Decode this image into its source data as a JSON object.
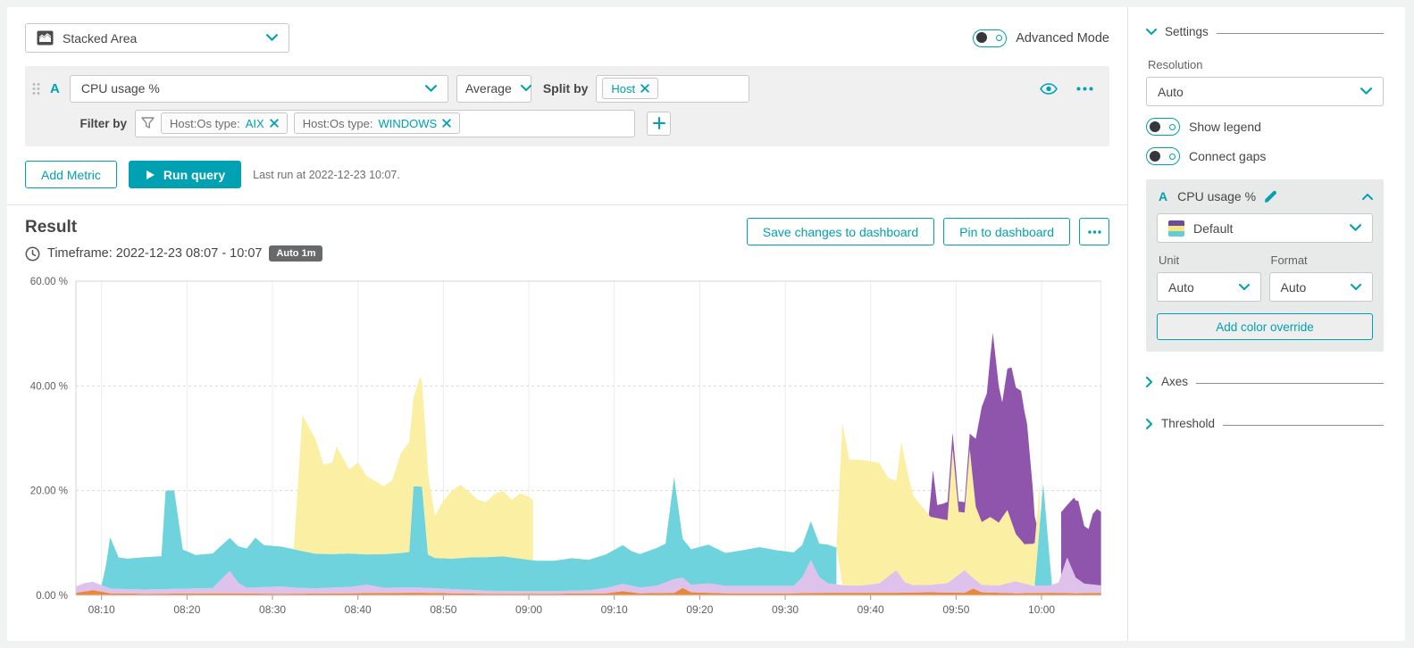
{
  "colors": {
    "accent": "#00a1b2",
    "panel_gray": "#f0f0f1",
    "badge_gray": "#68696b"
  },
  "toolbar": {
    "chart_type": "Stacked Area",
    "advanced_mode_label": "Advanced Mode"
  },
  "query": {
    "letter": "A",
    "metric": "CPU usage %",
    "aggregation": "Average",
    "split_by_label": "Split by",
    "split_tags": [
      {
        "value": "Host"
      }
    ],
    "filter_by_label": "Filter by",
    "filters": [
      {
        "label": "Host:Os type:",
        "value": "AIX"
      },
      {
        "label": "Host:Os type:",
        "value": "WINDOWS"
      }
    ]
  },
  "actions": {
    "add_metric": "Add Metric",
    "run_query": "Run query",
    "last_run": "Last run at 2022-12-23 10:07."
  },
  "result": {
    "title": "Result",
    "timeframe": "Timeframe: 2022-12-23 08:07 - 10:07",
    "resolution_badge": "Auto 1m",
    "save_button": "Save changes to dashboard",
    "pin_button": "Pin to dashboard"
  },
  "sidebar": {
    "settings_title": "Settings",
    "resolution_label": "Resolution",
    "resolution_value": "Auto",
    "show_legend_label": "Show legend",
    "connect_gaps_label": "Connect gaps",
    "metric_letter": "A",
    "metric_name": "CPU usage %",
    "color_scheme_value": "Default",
    "unit_label": "Unit",
    "unit_value": "Auto",
    "format_label": "Format",
    "format_value": "Auto",
    "add_color_override": "Add color override",
    "axes_title": "Axes",
    "threshold_title": "Threshold"
  },
  "chart_data": {
    "type": "area",
    "stacked": true,
    "legend_visible": false,
    "unit": "percent",
    "x_axis": {
      "start_label": "08:07",
      "end_label": "10:07",
      "minutes_domain": [
        0,
        120
      ],
      "ticks": [
        {
          "t": 3,
          "label": "08:10"
        },
        {
          "t": 13,
          "label": "08:20"
        },
        {
          "t": 23,
          "label": "08:30"
        },
        {
          "t": 33,
          "label": "08:40"
        },
        {
          "t": 43,
          "label": "08:50"
        },
        {
          "t": 53,
          "label": "09:00"
        },
        {
          "t": 63,
          "label": "09:10"
        },
        {
          "t": 73,
          "label": "09:20"
        },
        {
          "t": 83,
          "label": "09:30"
        },
        {
          "t": 93,
          "label": "09:40"
        },
        {
          "t": 103,
          "label": "09:50"
        },
        {
          "t": 113,
          "label": "10:00"
        }
      ]
    },
    "y_axis": {
      "min": 0,
      "max": 60,
      "ticks": [
        {
          "v": 0,
          "label": "0.00 %"
        },
        {
          "v": 20,
          "label": "20.00 %"
        },
        {
          "v": 40,
          "label": "40.00 %"
        },
        {
          "v": 60,
          "label": "60.00 %"
        }
      ]
    },
    "series": [
      {
        "id": "host-orange",
        "color": "#e8883a",
        "segments": [
          [
            [
              0,
              0.5
            ],
            [
              2,
              1.0
            ],
            [
              4,
              0.4
            ],
            [
              8,
              0.3
            ],
            [
              16,
              0.4
            ],
            [
              24,
              0.3
            ],
            [
              32,
              0.4
            ],
            [
              40,
              0.5
            ],
            [
              48,
              0.3
            ],
            [
              56,
              0.3
            ],
            [
              62,
              0.4
            ],
            [
              64,
              0.8
            ],
            [
              66,
              0.4
            ],
            [
              70,
              0.5
            ],
            [
              71,
              1.4
            ],
            [
              72,
              0.6
            ],
            [
              76,
              0.4
            ],
            [
              80,
              0.4
            ],
            [
              84,
              0.4
            ],
            [
              88,
              0.5
            ],
            [
              92,
              0.5
            ],
            [
              96,
              0.5
            ],
            [
              100,
              0.6
            ],
            [
              104,
              0.5
            ],
            [
              105,
              1.3
            ],
            [
              106,
              0.6
            ],
            [
              110,
              0.4
            ],
            [
              114,
              0.5
            ],
            [
              117,
              0.4
            ],
            [
              120,
              0.5
            ]
          ]
        ]
      },
      {
        "id": "host-lavender",
        "color": "#dfc2eb",
        "segments": [
          [
            [
              0,
              1.2
            ],
            [
              1,
              1.6
            ],
            [
              2,
              1.6
            ],
            [
              4,
              0.9
            ],
            [
              8,
              0.8
            ],
            [
              12,
              0.9
            ],
            [
              16,
              1.0
            ],
            [
              18,
              4.3
            ],
            [
              19,
              2.0
            ],
            [
              20,
              1.1
            ],
            [
              24,
              1.4
            ],
            [
              26,
              1.1
            ],
            [
              28,
              1.0
            ],
            [
              32,
              1.2
            ],
            [
              34,
              1.6
            ],
            [
              36,
              1.0
            ],
            [
              40,
              1.0
            ],
            [
              44,
              0.8
            ],
            [
              48,
              0.6
            ],
            [
              52,
              0.5
            ],
            [
              56,
              0.5
            ],
            [
              60,
              0.6
            ],
            [
              62,
              1.0
            ],
            [
              64,
              1.4
            ],
            [
              66,
              1.1
            ],
            [
              68,
              1.4
            ],
            [
              70,
              2.6
            ],
            [
              72,
              1.4
            ],
            [
              74,
              1.8
            ],
            [
              76,
              1.4
            ],
            [
              80,
              1.4
            ],
            [
              84,
              1.4
            ],
            [
              85,
              3.0
            ],
            [
              86,
              6.3
            ],
            [
              87,
              3.0
            ],
            [
              88,
              1.8
            ],
            [
              90,
              1.4
            ],
            [
              92,
              1.4
            ],
            [
              94,
              1.8
            ],
            [
              96,
              4.3
            ],
            [
              97,
              2.0
            ],
            [
              98,
              1.4
            ],
            [
              100,
              1.4
            ],
            [
              102,
              1.8
            ],
            [
              104,
              4.3
            ],
            [
              105,
              2.0
            ],
            [
              106,
              1.4
            ],
            [
              108,
              1.4
            ],
            [
              110,
              2.3
            ],
            [
              112,
              1.4
            ],
            [
              114,
              1.4
            ],
            [
              115,
              2.0
            ],
            [
              116,
              6.8
            ],
            [
              117,
              3.0
            ],
            [
              118,
              1.8
            ],
            [
              120,
              1.4
            ]
          ]
        ]
      },
      {
        "id": "host-teal",
        "color": "#6ed3dd",
        "segments": [
          [
            [
              3,
              0
            ],
            [
              3.5,
              4.0
            ],
            [
              4,
              9.8
            ],
            [
              5,
              6.0
            ],
            [
              6,
              5.8
            ],
            [
              8,
              6.2
            ],
            [
              10,
              6.3
            ],
            [
              10.5,
              18.8
            ],
            [
              11.5,
              18.8
            ],
            [
              12.5,
              7.5
            ],
            [
              14,
              6.4
            ],
            [
              16,
              6.6
            ],
            [
              18,
              6.3
            ],
            [
              19,
              7.0
            ],
            [
              20,
              7.5
            ],
            [
              21,
              9.5
            ],
            [
              22,
              8.0
            ],
            [
              24,
              7.6
            ],
            [
              26,
              7.2
            ],
            [
              28,
              6.6
            ],
            [
              30,
              6.4
            ],
            [
              32,
              6.4
            ],
            [
              34,
              5.8
            ],
            [
              36,
              6.4
            ],
            [
              38,
              6.6
            ],
            [
              39,
              6.8
            ],
            [
              39.5,
              19.3
            ],
            [
              40.5,
              19.3
            ],
            [
              41.2,
              6.4
            ],
            [
              42,
              5.8
            ],
            [
              44,
              5.8
            ],
            [
              46,
              6.2
            ],
            [
              48,
              6.4
            ],
            [
              50,
              6.6
            ],
            [
              52,
              6.2
            ],
            [
              54,
              5.8
            ],
            [
              56,
              5.8
            ],
            [
              58,
              6.2
            ],
            [
              60,
              5.8
            ],
            [
              62,
              6.4
            ],
            [
              64,
              7.4
            ],
            [
              65,
              6.6
            ],
            [
              66,
              6.4
            ],
            [
              68,
              7.2
            ],
            [
              69,
              7.4
            ],
            [
              70,
              19.5
            ],
            [
              71,
              7.4
            ],
            [
              72,
              6.8
            ],
            [
              74,
              7.4
            ],
            [
              76,
              6.3
            ],
            [
              78,
              6.8
            ],
            [
              80,
              7.4
            ],
            [
              82,
              6.8
            ],
            [
              84,
              6.4
            ],
            [
              85,
              6.2
            ],
            [
              86,
              7.4
            ],
            [
              87,
              6.4
            ],
            [
              88,
              7.4
            ],
            [
              89,
              7.0
            ]
          ],
          [
            [
              112.2,
              0.3
            ],
            [
              113.2,
              19.5
            ],
            [
              114.2,
              0.3
            ]
          ]
        ]
      },
      {
        "id": "host-yellow",
        "color": "#faefa3",
        "segments": [
          [
            [
              25.5,
              0
            ],
            [
              26.5,
              26
            ],
            [
              28,
              22
            ],
            [
              29,
              17
            ],
            [
              30,
              17.5
            ],
            [
              30.5,
              20.5
            ],
            [
              32,
              16
            ],
            [
              33,
              17.5
            ],
            [
              34,
              15
            ],
            [
              35,
              14
            ],
            [
              36,
              13
            ],
            [
              37,
              14
            ],
            [
              38,
              19
            ],
            [
              39,
              21
            ],
            [
              39.5,
              17
            ],
            [
              40.3,
              21
            ],
            [
              41,
              17.5
            ],
            [
              42,
              8
            ],
            [
              43,
              11
            ],
            [
              44,
              13
            ],
            [
              45,
              14
            ],
            [
              46,
              12.5
            ],
            [
              47,
              11
            ],
            [
              48,
              10.5
            ],
            [
              49,
              12
            ],
            [
              50,
              12.5
            ],
            [
              51,
              11
            ],
            [
              52,
              12.5
            ],
            [
              53,
              12
            ],
            [
              53.5,
              11.5
            ]
          ],
          [
            [
              89,
              0
            ],
            [
              89.7,
              31
            ],
            [
              90.5,
              24
            ],
            [
              92,
              24
            ],
            [
              94,
              23
            ],
            [
              95,
              19
            ],
            [
              96,
              17
            ],
            [
              96.6,
              26
            ],
            [
              97.5,
              20
            ],
            [
              98,
              17
            ],
            [
              99,
              15
            ],
            [
              100,
              13
            ],
            [
              101,
              12.5
            ],
            [
              102,
              12
            ],
            [
              102.6,
              25
            ],
            [
              103.3,
              12
            ],
            [
              104,
              11
            ],
            [
              104.6,
              24
            ],
            [
              105.3,
              14
            ],
            [
              106,
              12
            ],
            [
              107,
              13
            ],
            [
              108,
              12
            ],
            [
              109,
              14
            ],
            [
              110,
              9
            ],
            [
              111,
              7.5
            ],
            [
              112,
              8
            ],
            [
              112.8,
              7.5
            ]
          ]
        ]
      },
      {
        "id": "host-purple",
        "color": "#8f55ad",
        "segments": [
          [
            [
              99.8,
              0
            ],
            [
              100.3,
              9
            ],
            [
              100.8,
              2.5
            ],
            [
              101.5,
              3
            ],
            [
              102,
              3.5
            ],
            [
              102.6,
              3
            ],
            [
              103.3,
              2
            ],
            [
              104,
              2
            ],
            [
              104.6,
              3
            ],
            [
              105.3,
              13
            ],
            [
              106,
              22
            ],
            [
              106.6,
              24
            ],
            [
              107.3,
              35.5
            ],
            [
              108,
              26
            ],
            [
              108.4,
              22
            ],
            [
              109,
              27
            ],
            [
              109.5,
              29.5
            ],
            [
              110,
              28
            ],
            [
              110.6,
              28.5
            ],
            [
              111.3,
              23
            ],
            [
              112,
              10
            ],
            [
              112.4,
              0
            ]
          ],
          [
            [
              115.3,
              12
            ],
            [
              116,
              10
            ],
            [
              116.8,
              14.5
            ],
            [
              117.3,
              15
            ],
            [
              118,
              11
            ],
            [
              118.5,
              10.5
            ],
            [
              119,
              13.5
            ],
            [
              119.5,
              14.5
            ],
            [
              120,
              14
            ]
          ]
        ]
      }
    ]
  }
}
